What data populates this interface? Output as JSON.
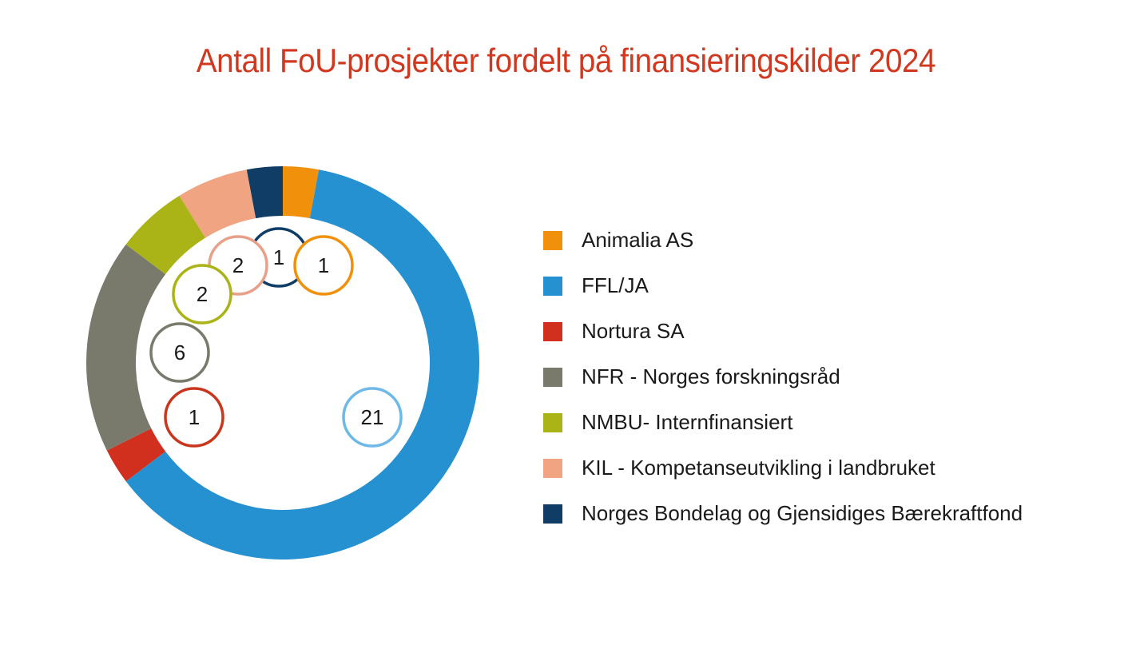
{
  "chart_data": {
    "type": "donut",
    "title": "Antall FoU-prosjekter fordelt på finansieringskilder 2024",
    "series": [
      {
        "name": "Animalia AS",
        "value": 1,
        "color": "#f0900b"
      },
      {
        "name": "FFL/JA",
        "value": 21,
        "color": "#2591d1"
      },
      {
        "name": "Nortura SA",
        "value": 1,
        "color": "#d2301e"
      },
      {
        "name": "NFR - Norges forskningsråd",
        "value": 6,
        "color": "#7a7a6c"
      },
      {
        "name": "NMBU- Internfinansiert",
        "value": 2,
        "color": "#aab416"
      },
      {
        "name": "KIL - Kompetanseutvikling i landbruket",
        "value": 2,
        "color": "#f0a482"
      },
      {
        "name": "Norges Bondelag og Gjensidiges Bærekraftfond",
        "value": 1,
        "color": "#103d66"
      }
    ],
    "label_ring_colors": [
      "#f0900b",
      "#6fb9e8",
      "#c9361e",
      "#7a7a6c",
      "#aab416",
      "#e8a088",
      "#103d66"
    ],
    "legend_position": "right"
  }
}
